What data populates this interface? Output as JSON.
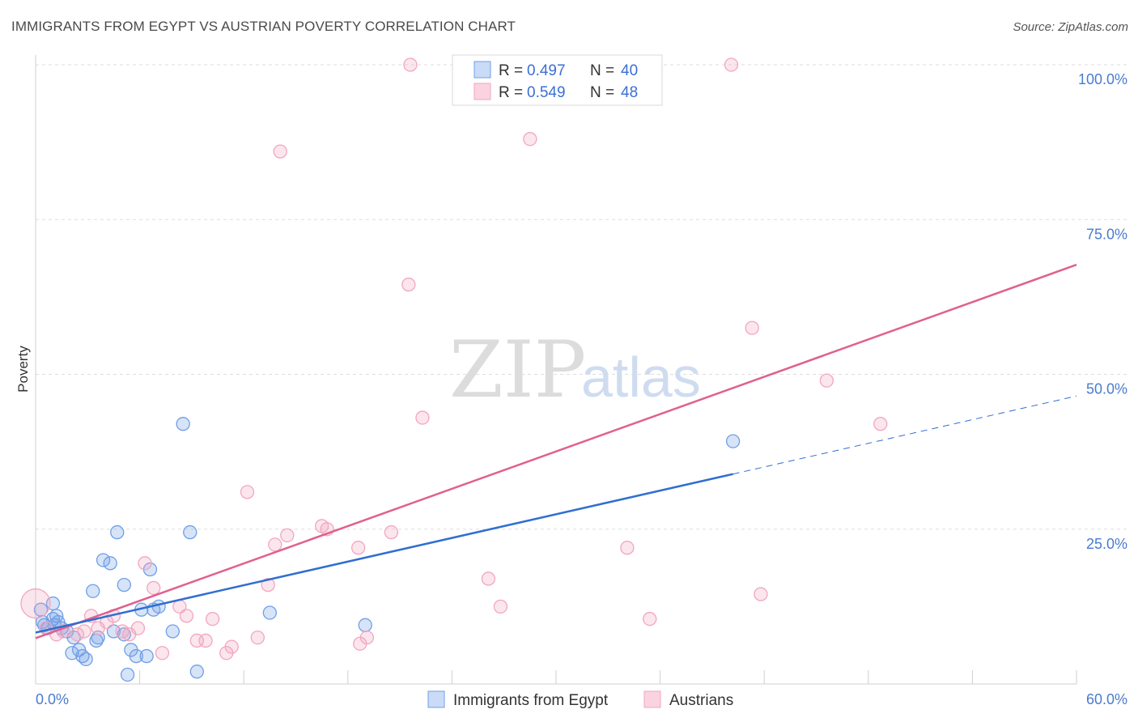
{
  "title": "IMMIGRANTS FROM EGYPT VS AUSTRIAN POVERTY CORRELATION CHART",
  "source": "Source: ZipAtlas.com",
  "watermark": {
    "part1": "ZIP",
    "part2": "atlas"
  },
  "colors": {
    "blue": "#6f9fe6",
    "blue_line": "#2f6fd0",
    "pink": "#f2a6bf",
    "pink_line": "#e0608f"
  },
  "legend": {
    "r_label": "R =",
    "n_label": "N =",
    "rows": [
      {
        "r": "0.497",
        "n": "40"
      },
      {
        "r": "0.549",
        "n": "48"
      }
    ]
  },
  "bottom_legend": [
    "Immigrants from Egypt",
    "Austrians"
  ],
  "chart_data": {
    "type": "scatter",
    "title": "IMMIGRANTS FROM EGYPT VS AUSTRIAN POVERTY CORRELATION CHART",
    "xlabel": "",
    "ylabel": "Poverty",
    "xlim": [
      0,
      60
    ],
    "ylim": [
      0,
      100
    ],
    "x_ticks": [
      "0.0%",
      "60.0%"
    ],
    "y_ticks": [
      "25.0%",
      "50.0%",
      "75.0%",
      "100.0%"
    ],
    "y_tick_values": [
      25,
      50,
      75,
      100
    ],
    "grid": true,
    "legend_position": "top-center",
    "series": [
      {
        "name": "Immigrants from Egypt",
        "r": 0.497,
        "n": 40,
        "points": [
          [
            0.3,
            12
          ],
          [
            0.4,
            10
          ],
          [
            0.5,
            9.5
          ],
          [
            1,
            13
          ],
          [
            1,
            10.5
          ],
          [
            1.1,
            9.5
          ],
          [
            1.2,
            11
          ],
          [
            1.3,
            10
          ],
          [
            1.5,
            9
          ],
          [
            2.1,
            5
          ],
          [
            2.5,
            5.5
          ],
          [
            2.7,
            4.5
          ],
          [
            2.9,
            4
          ],
          [
            3.3,
            15
          ],
          [
            3.5,
            7
          ],
          [
            3.9,
            20
          ],
          [
            3.6,
            7.5
          ],
          [
            4.3,
            19.5
          ],
          [
            4.5,
            8.5
          ],
          [
            4.7,
            24.5
          ],
          [
            5.1,
            16
          ],
          [
            5.1,
            8
          ],
          [
            5.3,
            1.5
          ],
          [
            5.5,
            5.5
          ],
          [
            5.8,
            4.5
          ],
          [
            6.1,
            12
          ],
          [
            6.4,
            4.5
          ],
          [
            6.6,
            18.5
          ],
          [
            6.8,
            12
          ],
          [
            7.1,
            12.5
          ],
          [
            7.9,
            8.5
          ],
          [
            8.5,
            42
          ],
          [
            8.9,
            24.5
          ],
          [
            9.3,
            2
          ],
          [
            13.5,
            11.5
          ],
          [
            19,
            9.5
          ],
          [
            0.7,
            9
          ],
          [
            1.8,
            8.5
          ],
          [
            2.2,
            7.5
          ],
          [
            40.2,
            39.2
          ]
        ],
        "trend": {
          "x": [
            0,
            40.2
          ],
          "y": [
            8.3,
            33.9
          ]
        },
        "trend_dashed": {
          "x": [
            40.2,
            60
          ],
          "y": [
            33.9,
            46.5
          ]
        }
      },
      {
        "name": "Austrians",
        "r": 0.549,
        "n": 48,
        "points": [
          [
            0,
            13
          ],
          [
            0.6,
            9
          ],
          [
            1.2,
            8
          ],
          [
            1.6,
            8.5
          ],
          [
            2.4,
            8
          ],
          [
            2.8,
            8.5
          ],
          [
            3.2,
            11
          ],
          [
            3.6,
            9
          ],
          [
            4.1,
            10
          ],
          [
            4.5,
            11
          ],
          [
            5,
            8.5
          ],
          [
            5.4,
            8
          ],
          [
            5.9,
            9
          ],
          [
            6.3,
            19.5
          ],
          [
            6.8,
            15.5
          ],
          [
            7.3,
            5
          ],
          [
            8.3,
            12.5
          ],
          [
            8.7,
            11
          ],
          [
            9.3,
            7
          ],
          [
            9.8,
            7
          ],
          [
            10.2,
            10.5
          ],
          [
            11,
            5
          ],
          [
            11.3,
            6
          ],
          [
            12.2,
            31
          ],
          [
            12.8,
            7.5
          ],
          [
            13.4,
            16
          ],
          [
            13.8,
            22.5
          ],
          [
            14.5,
            24
          ],
          [
            16.5,
            25.5
          ],
          [
            16.8,
            25
          ],
          [
            18.7,
            6.5
          ],
          [
            18.6,
            22
          ],
          [
            19.1,
            7.5
          ],
          [
            20.5,
            24.5
          ],
          [
            21.5,
            64.5
          ],
          [
            21.6,
            100
          ],
          [
            22.3,
            43
          ],
          [
            26.1,
            17
          ],
          [
            26.8,
            12.5
          ],
          [
            28.5,
            88
          ],
          [
            34.1,
            22
          ],
          [
            35.4,
            10.5
          ],
          [
            40.1,
            100
          ],
          [
            41.3,
            57.5
          ],
          [
            41.8,
            14.5
          ],
          [
            45.6,
            49
          ],
          [
            48.7,
            42
          ],
          [
            14.1,
            86
          ]
        ],
        "trend": {
          "x": [
            0,
            60
          ],
          "y": [
            7.4,
            67.7
          ]
        }
      }
    ]
  }
}
